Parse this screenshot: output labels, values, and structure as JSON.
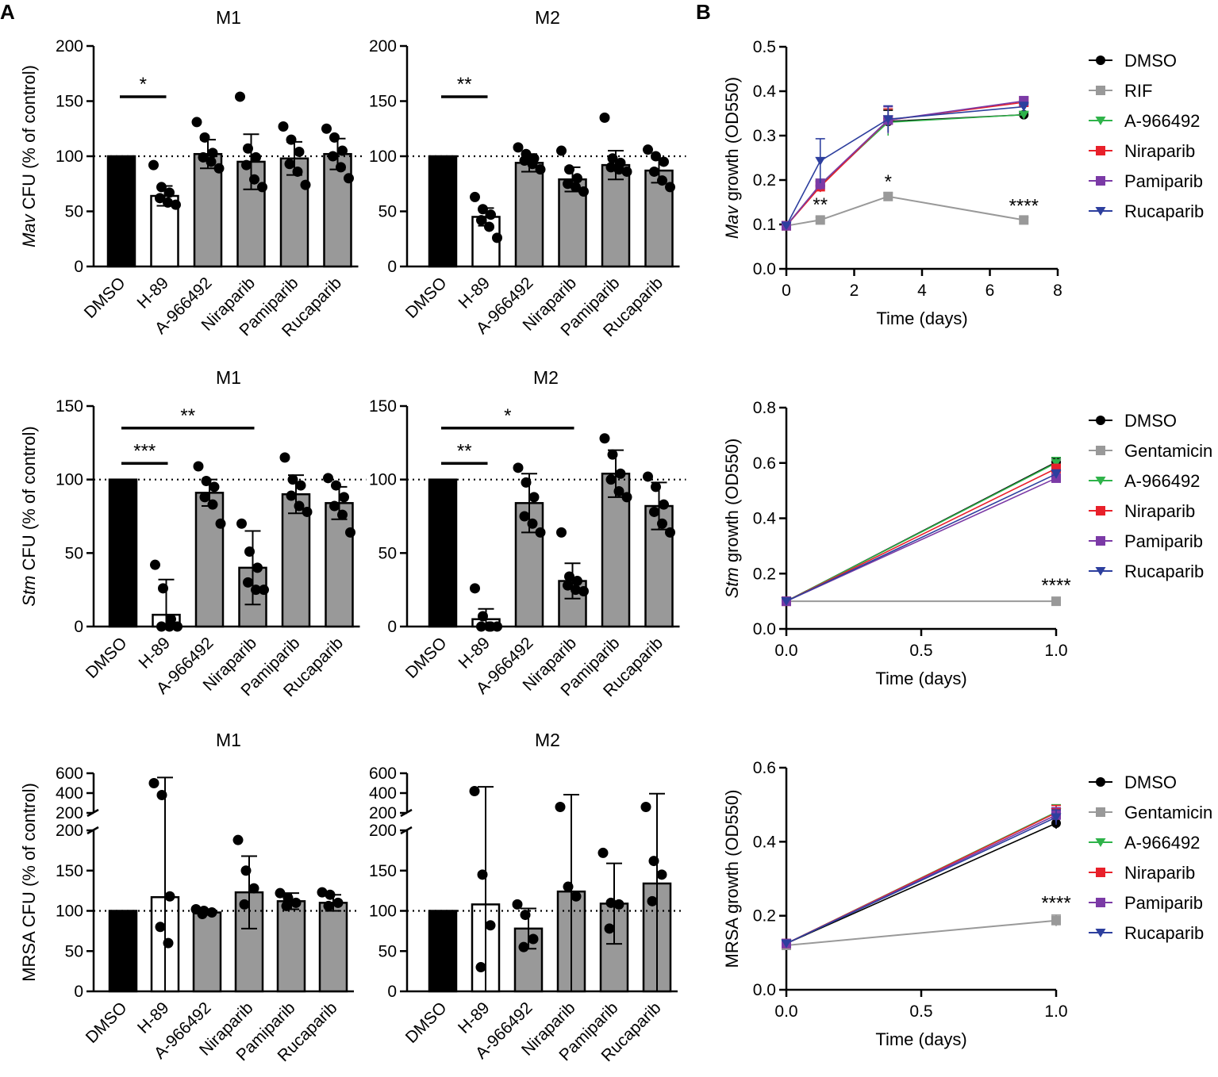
{
  "panel_labels": {
    "a": "A",
    "b": "B"
  },
  "categories": [
    "DMSO",
    "H-89",
    "A-966492",
    "Niraparib",
    "Pamiparib",
    "Rucaparib"
  ],
  "chart_data": [
    {
      "type": "bar",
      "id": "mav-m1",
      "title": "M1",
      "ylabel_italic": "Mav",
      "ylabel_rest": " CFU (% of control)",
      "ylim": [
        0,
        200
      ],
      "yticks": [
        0,
        50,
        100,
        150,
        200
      ],
      "reference_line": 100,
      "bars": [
        {
          "category": "DMSO",
          "mean": 100,
          "sd": 0,
          "fill": "#000000",
          "points": [
            100,
            100,
            100,
            100,
            100,
            100
          ]
        },
        {
          "category": "H-89",
          "mean": 64,
          "sd": 9,
          "fill": "#ffffff",
          "points": [
            92,
            72,
            67,
            62,
            58,
            56
          ]
        },
        {
          "category": "A-966492",
          "mean": 102,
          "sd": 13,
          "fill": "#999999",
          "points": [
            131,
            117,
            103,
            99,
            95,
            89
          ]
        },
        {
          "category": "Niraparib",
          "mean": 95,
          "sd": 25,
          "fill": "#999999",
          "points": [
            154,
            107,
            99,
            92,
            79,
            72
          ]
        },
        {
          "category": "Pamiparib",
          "mean": 98,
          "sd": 15,
          "fill": "#999999",
          "points": [
            127,
            115,
            104,
            93,
            86,
            74
          ]
        },
        {
          "category": "Rucaparib",
          "mean": 102,
          "sd": 14,
          "fill": "#999999",
          "points": [
            125,
            117,
            105,
            100,
            90,
            80
          ]
        }
      ],
      "significance": [
        {
          "from": 0,
          "to": 1,
          "label": "*",
          "y": 154
        }
      ]
    },
    {
      "type": "bar",
      "id": "mav-m2",
      "title": "M2",
      "ylim": [
        0,
        200
      ],
      "yticks": [
        0,
        50,
        100,
        150,
        200
      ],
      "reference_line": 100,
      "bars": [
        {
          "category": "DMSO",
          "mean": 100,
          "sd": 0,
          "fill": "#000000",
          "points": [
            100,
            100,
            100,
            100,
            100,
            100
          ]
        },
        {
          "category": "H-89",
          "mean": 45,
          "sd": 8,
          "fill": "#ffffff",
          "points": [
            63,
            52,
            47,
            42,
            36,
            26
          ]
        },
        {
          "category": "A-966492",
          "mean": 94,
          "sd": 8,
          "fill": "#999999",
          "points": [
            108,
            102,
            98,
            96,
            93,
            88
          ]
        },
        {
          "category": "Niraparib",
          "mean": 79,
          "sd": 11,
          "fill": "#999999",
          "points": [
            105,
            88,
            80,
            75,
            72,
            68
          ]
        },
        {
          "category": "Pamiparib",
          "mean": 92,
          "sd": 13,
          "fill": "#999999",
          "points": [
            135,
            98,
            94,
            90,
            88,
            86
          ]
        },
        {
          "category": "Rucaparib",
          "mean": 87,
          "sd": 11,
          "fill": "#999999",
          "points": [
            106,
            100,
            95,
            86,
            78,
            72
          ]
        }
      ],
      "significance": [
        {
          "from": 0,
          "to": 1,
          "label": "**",
          "y": 154
        }
      ]
    },
    {
      "type": "bar",
      "id": "stm-m1",
      "title": "M1",
      "ylabel_italic": "Stm",
      "ylabel_rest": " CFU (% of control)",
      "ylim": [
        0,
        150
      ],
      "yticks": [
        0,
        50,
        100,
        150
      ],
      "reference_line": 100,
      "bars": [
        {
          "category": "DMSO",
          "mean": 100,
          "sd": 0,
          "fill": "#000000",
          "points": [
            100,
            100,
            100,
            100,
            100,
            100
          ]
        },
        {
          "category": "H-89",
          "mean": 8,
          "sd": 24,
          "fill": "#ffffff",
          "points": [
            42,
            26,
            5,
            0,
            0,
            0
          ]
        },
        {
          "category": "A-966492",
          "mean": 91,
          "sd": 9,
          "fill": "#999999",
          "points": [
            109,
            99,
            95,
            88,
            83,
            70
          ]
        },
        {
          "category": "Niraparib",
          "mean": 40,
          "sd": 25,
          "fill": "#999999",
          "points": [
            70,
            51,
            40,
            30,
            25,
            25
          ]
        },
        {
          "category": "Pamiparib",
          "mean": 90,
          "sd": 13,
          "fill": "#999999",
          "points": [
            115,
            100,
            96,
            89,
            82,
            78
          ]
        },
        {
          "category": "Rucaparib",
          "mean": 84,
          "sd": 11,
          "fill": "#999999",
          "points": [
            101,
            96,
            88,
            82,
            76,
            64
          ]
        }
      ],
      "significance": [
        {
          "from": 0,
          "to": 1,
          "label": "***",
          "y": 111
        },
        {
          "from": 0,
          "to": 3,
          "label": "**",
          "y": 135
        }
      ]
    },
    {
      "type": "bar",
      "id": "stm-m2",
      "title": "M2",
      "ylim": [
        0,
        150
      ],
      "yticks": [
        0,
        50,
        100,
        150
      ],
      "reference_line": 100,
      "bars": [
        {
          "category": "DMSO",
          "mean": 100,
          "sd": 0,
          "fill": "#000000",
          "points": [
            100,
            100,
            100,
            100,
            100,
            100
          ]
        },
        {
          "category": "H-89",
          "mean": 5,
          "sd": 7,
          "fill": "#ffffff",
          "points": [
            26,
            7,
            0,
            0,
            0,
            0
          ]
        },
        {
          "category": "A-966492",
          "mean": 84,
          "sd": 20,
          "fill": "#999999",
          "points": [
            108,
            98,
            88,
            75,
            70,
            64
          ]
        },
        {
          "category": "Niraparib",
          "mean": 31,
          "sd": 12,
          "fill": "#999999",
          "points": [
            64,
            34,
            31,
            28,
            25,
            24
          ]
        },
        {
          "category": "Pamiparib",
          "mean": 104,
          "sd": 16,
          "fill": "#999999",
          "points": [
            128,
            117,
            104,
            100,
            92,
            88
          ]
        },
        {
          "category": "Rucaparib",
          "mean": 82,
          "sd": 16,
          "fill": "#999999",
          "points": [
            102,
            95,
            83,
            78,
            70,
            64
          ]
        }
      ],
      "significance": [
        {
          "from": 0,
          "to": 1,
          "label": "**",
          "y": 111
        },
        {
          "from": 0,
          "to": 3,
          "label": "*",
          "y": 135
        }
      ]
    },
    {
      "type": "bar",
      "id": "mrsa-m1",
      "title": "M1",
      "ylabel_italic": "",
      "ylabel_rest": "MRSA CFU (% of control)",
      "broken_axis": true,
      "lower_ylim": [
        0,
        200
      ],
      "lower_yticks": [
        0,
        50,
        100,
        150,
        200
      ],
      "upper_ylim": [
        200,
        600
      ],
      "upper_yticks": [
        200,
        400,
        600
      ],
      "reference_line": 100,
      "bars": [
        {
          "category": "DMSO",
          "mean": 100,
          "sd": 0,
          "fill": "#000000",
          "points": [
            100,
            100,
            100,
            100
          ]
        },
        {
          "category": "H-89",
          "mean": 117,
          "sd": 440,
          "fill": "#ffffff",
          "points": [
            500,
            380,
            118,
            80,
            60
          ]
        },
        {
          "category": "A-966492",
          "mean": 98,
          "sd": 3,
          "fill": "#999999",
          "points": [
            102,
            100,
            98,
            96
          ]
        },
        {
          "category": "Niraparib",
          "mean": 123,
          "sd": 45,
          "fill": "#999999",
          "points": [
            188,
            150,
            128,
            108
          ]
        },
        {
          "category": "Pamiparib",
          "mean": 112,
          "sd": 10,
          "fill": "#999999",
          "points": [
            122,
            116,
            110,
            106
          ]
        },
        {
          "category": "Rucaparib",
          "mean": 110,
          "sd": 10,
          "fill": "#999999",
          "points": [
            123,
            120,
            110,
            106
          ]
        }
      ]
    },
    {
      "type": "bar",
      "id": "mrsa-m2",
      "title": "M2",
      "broken_axis": true,
      "lower_ylim": [
        0,
        200
      ],
      "lower_yticks": [
        0,
        50,
        100,
        150,
        200
      ],
      "upper_ylim": [
        200,
        600
      ],
      "upper_yticks": [
        200,
        400,
        600
      ],
      "reference_line": 100,
      "bars": [
        {
          "category": "DMSO",
          "mean": 100,
          "sd": 0,
          "fill": "#000000",
          "points": [
            100,
            100,
            100,
            100
          ]
        },
        {
          "category": "H-89",
          "mean": 108,
          "sd": 355,
          "fill": "#ffffff",
          "points": [
            420,
            145,
            82,
            30
          ]
        },
        {
          "category": "A-966492",
          "mean": 78,
          "sd": 25,
          "fill": "#999999",
          "points": [
            108,
            95,
            65,
            55
          ]
        },
        {
          "category": "Niraparib",
          "mean": 124,
          "sd": 260,
          "fill": "#999999",
          "points": [
            260,
            130,
            118
          ]
        },
        {
          "category": "Pamiparib",
          "mean": 109,
          "sd": 50,
          "fill": "#999999",
          "points": [
            172,
            110,
            108,
            78
          ]
        },
        {
          "category": "Rucaparib",
          "mean": 134,
          "sd": 260,
          "fill": "#999999",
          "points": [
            260,
            162,
            145,
            112
          ]
        }
      ]
    },
    {
      "type": "line",
      "id": "mav-growth",
      "ylabel_italic": "Mav",
      "ylabel_rest": " growth (OD550)",
      "xlabel": "Time (days)",
      "xlim": [
        0,
        8
      ],
      "xticks": [
        0,
        2,
        4,
        6,
        8
      ],
      "ylim": [
        0.0,
        0.5
      ],
      "yticks": [
        "0.0",
        "0.1",
        "0.2",
        "0.3",
        "0.4",
        "0.5"
      ],
      "series": [
        {
          "name": "DMSO",
          "color": "#000000",
          "marker": "circle",
          "x": [
            0,
            1,
            3,
            7
          ],
          "y": [
            0.097,
            0.187,
            0.332,
            0.347
          ],
          "err": [
            0.005,
            0.01,
            0.025,
            0.006
          ]
        },
        {
          "name": "RIF",
          "color": "#999999",
          "marker": "square",
          "x": [
            0,
            1,
            3,
            7
          ],
          "y": [
            0.097,
            0.11,
            0.163,
            0.11
          ],
          "err": [
            0.004,
            0.006,
            0.008,
            0.006
          ]
        },
        {
          "name": "A-966492",
          "color": "#2fb34a",
          "marker": "triangle-down",
          "x": [
            0,
            1,
            3,
            7
          ],
          "y": [
            0.097,
            0.19,
            0.33,
            0.347
          ],
          "err": [
            0.004,
            0.012,
            0.03,
            0.006
          ]
        },
        {
          "name": "Niraparib",
          "color": "#e8202a",
          "marker": "square",
          "x": [
            0,
            1,
            3,
            7
          ],
          "y": [
            0.097,
            0.185,
            0.335,
            0.375
          ],
          "err": [
            0.004,
            0.012,
            0.025,
            0.012
          ]
        },
        {
          "name": "Pamiparib",
          "color": "#7b3aa6",
          "marker": "square",
          "x": [
            0,
            1,
            3,
            7
          ],
          "y": [
            0.097,
            0.19,
            0.335,
            0.378
          ],
          "err": [
            0.004,
            0.012,
            0.03,
            0.01
          ]
        },
        {
          "name": "Rucaparib",
          "color": "#2d3f9e",
          "marker": "triangle-down",
          "x": [
            0,
            1,
            3,
            7
          ],
          "y": [
            0.097,
            0.243,
            0.337,
            0.365
          ],
          "err": [
            0.004,
            0.05,
            0.03,
            0.01
          ]
        }
      ],
      "annotations": [
        {
          "x": 1,
          "y": 0.13,
          "label": "**"
        },
        {
          "x": 3,
          "y": 0.182,
          "label": "*"
        },
        {
          "x": 7,
          "y": 0.128,
          "label": "****"
        }
      ]
    },
    {
      "type": "line",
      "id": "stm-growth",
      "ylabel_italic": "Stm",
      "ylabel_rest": " growth (OD550)",
      "xlabel": "Time (days)",
      "xlim": [
        0,
        1
      ],
      "xticks": [
        "0.0",
        "0.5",
        "1.0"
      ],
      "ylim": [
        0.0,
        0.8
      ],
      "yticks": [
        "0.0",
        "0.2",
        "0.4",
        "0.6",
        "0.8"
      ],
      "series": [
        {
          "name": "DMSO",
          "color": "#000000",
          "marker": "circle",
          "x": [
            0,
            1
          ],
          "y": [
            0.1,
            0.603
          ],
          "err": [
            0.01,
            0.015
          ]
        },
        {
          "name": "Gentamicin",
          "color": "#999999",
          "marker": "square",
          "x": [
            0,
            1
          ],
          "y": [
            0.1,
            0.1
          ],
          "err": [
            0.005,
            0.005
          ]
        },
        {
          "name": "A-966492",
          "color": "#2fb34a",
          "marker": "triangle-down",
          "x": [
            0,
            1
          ],
          "y": [
            0.1,
            0.6
          ],
          "err": [
            0.01,
            0.02
          ]
        },
        {
          "name": "Niraparib",
          "color": "#e8202a",
          "marker": "square",
          "x": [
            0,
            1
          ],
          "y": [
            0.1,
            0.58
          ],
          "err": [
            0.01,
            0.015
          ]
        },
        {
          "name": "Pamiparib",
          "color": "#7b3aa6",
          "marker": "square",
          "x": [
            0,
            1
          ],
          "y": [
            0.1,
            0.545
          ],
          "err": [
            0.01,
            0.015
          ]
        },
        {
          "name": "Rucaparib",
          "color": "#2d3f9e",
          "marker": "triangle-down",
          "x": [
            0,
            1
          ],
          "y": [
            0.1,
            0.56
          ],
          "err": [
            0.01,
            0.015
          ]
        }
      ],
      "annotations": [
        {
          "x": 1,
          "y": 0.135,
          "label": "****"
        }
      ]
    },
    {
      "type": "line",
      "id": "mrsa-growth",
      "ylabel_italic": "",
      "ylabel_rest": "MRSA growth (OD550)",
      "xlabel": "Time (days)",
      "xlim": [
        0,
        1
      ],
      "xticks": [
        "0.0",
        "0.5",
        "1.0"
      ],
      "ylim": [
        0.0,
        0.6
      ],
      "yticks": [
        "0.0",
        "0.2",
        "0.4",
        "0.6"
      ],
      "series": [
        {
          "name": "DMSO",
          "color": "#000000",
          "marker": "circle",
          "x": [
            0,
            1
          ],
          "y": [
            0.125,
            0.45
          ],
          "err": [
            0.008,
            0.015
          ]
        },
        {
          "name": "Gentamicin",
          "color": "#999999",
          "marker": "square",
          "x": [
            0,
            1
          ],
          "y": [
            0.12,
            0.187
          ],
          "err": [
            0.006,
            0.015
          ]
        },
        {
          "name": "A-966492",
          "color": "#2fb34a",
          "marker": "triangle-down",
          "x": [
            0,
            1
          ],
          "y": [
            0.125,
            0.48
          ],
          "err": [
            0.008,
            0.02
          ]
        },
        {
          "name": "Niraparib",
          "color": "#e8202a",
          "marker": "square",
          "x": [
            0,
            1
          ],
          "y": [
            0.125,
            0.478
          ],
          "err": [
            0.008,
            0.02
          ]
        },
        {
          "name": "Pamiparib",
          "color": "#7b3aa6",
          "marker": "square",
          "x": [
            0,
            1
          ],
          "y": [
            0.125,
            0.472
          ],
          "err": [
            0.008,
            0.02
          ]
        },
        {
          "name": "Rucaparib",
          "color": "#2d3f9e",
          "marker": "triangle-down",
          "x": [
            0,
            1
          ],
          "y": [
            0.125,
            0.466
          ],
          "err": [
            0.008,
            0.02
          ]
        }
      ],
      "annotations": [
        {
          "x": 1,
          "y": 0.218,
          "label": "****"
        }
      ]
    }
  ]
}
